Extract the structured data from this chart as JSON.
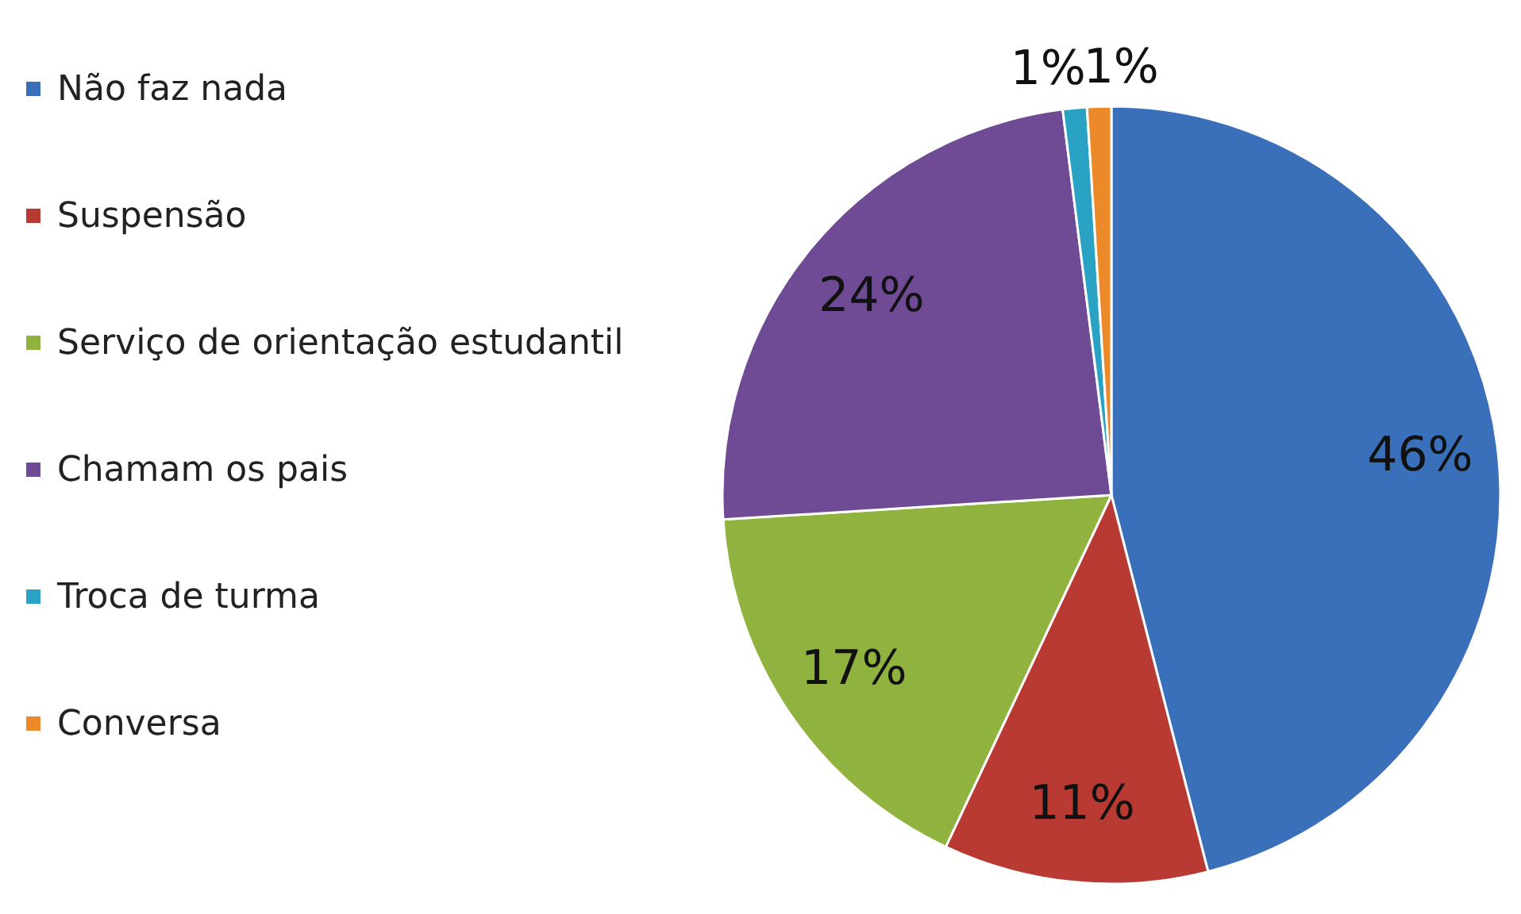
{
  "chart_data": {
    "type": "pie",
    "categories": [
      "Não faz nada",
      "Suspensão",
      "Serviço de orientação estudantil",
      "Chamam os pais",
      "Troca de turma",
      "Conversa"
    ],
    "values": [
      46,
      11,
      17,
      24,
      1,
      1
    ],
    "value_labels": [
      "46%",
      "11%",
      "17%",
      "24%",
      "1%",
      "1%"
    ],
    "colors": [
      "#3a6fba",
      "#b83a33",
      "#8fb33e",
      "#6e4b94",
      "#2aa2c4",
      "#ec8a2a"
    ],
    "legend": "left"
  }
}
